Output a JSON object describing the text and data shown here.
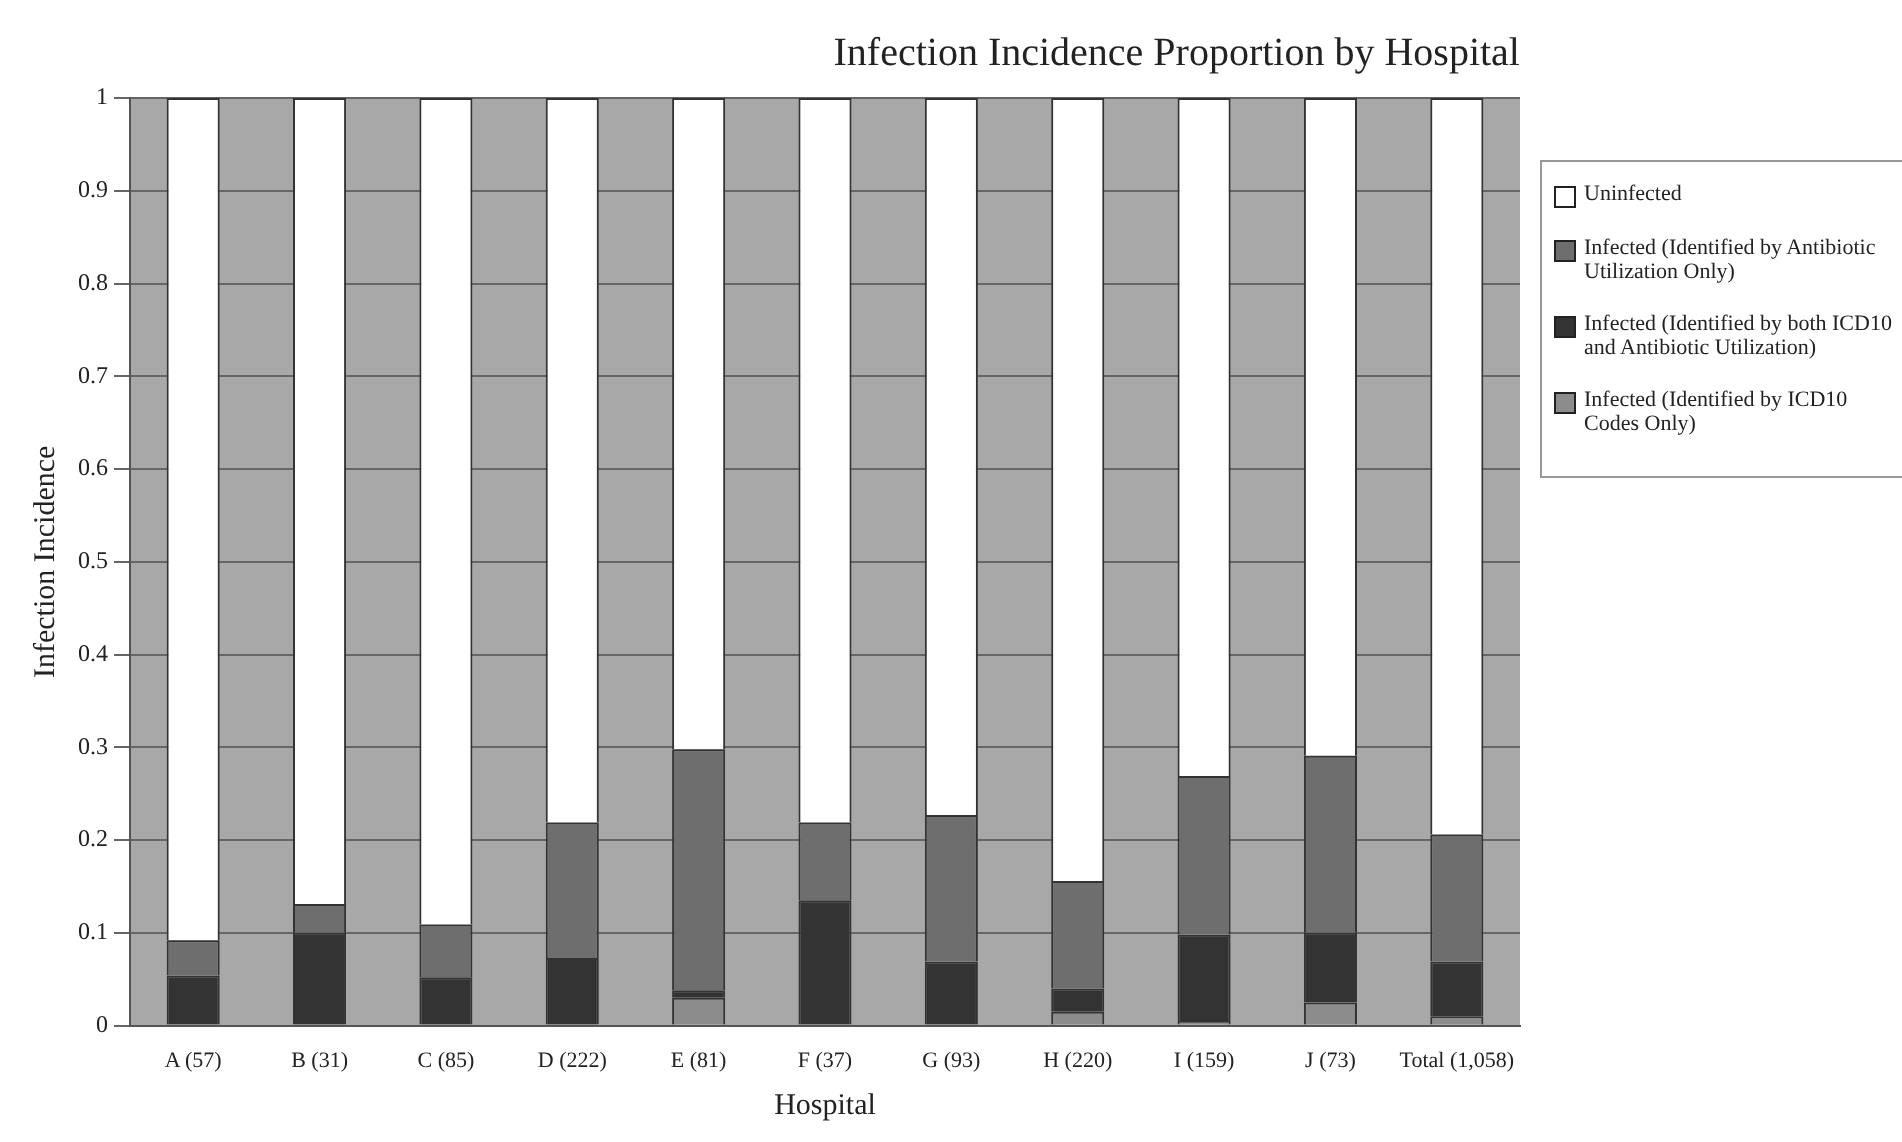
{
  "chart_data": {
    "type": "bar",
    "title": "Infection Incidence Proportion by Hospital",
    "xlabel": "Hospital",
    "ylabel": "Infection Incidence",
    "categories": [
      "A (57)",
      "B (31)",
      "C (85)",
      "D (222)",
      "E (81)",
      "F (37)",
      "G (93)",
      "H (220)",
      "I (159)",
      "J (73)",
      "Total (1,058)"
    ],
    "stacked": true,
    "legend": "right",
    "grid": "y",
    "ylim": [
      0,
      1
    ],
    "yticks": [
      0,
      0.1,
      0.2,
      0.3,
      0.4,
      0.5,
      0.6,
      0.7,
      0.8,
      0.9,
      1
    ],
    "series": [
      {
        "name": "Infected (Identified by ICD10 Codes Only)",
        "color": "#8c8c8c",
        "values": [
          0,
          0,
          0,
          0,
          0.03,
          0,
          0,
          0.015,
          0.005,
          0.025,
          0.01
        ]
      },
      {
        "name": "Infected (Identified by both ICD10 and Antibiotic Utilization)",
        "color": "#333333",
        "values": [
          0.054,
          0.1,
          0.052,
          0.073,
          0.008,
          0.135,
          0.069,
          0.025,
          0.093,
          0.075,
          0.059
        ]
      },
      {
        "name": "Infected (Identified by Antibiotic Utilization Only)",
        "color": "#6e6e6e",
        "values": [
          0.038,
          0.031,
          0.057,
          0.146,
          0.26,
          0.084,
          0.158,
          0.116,
          0.171,
          0.191,
          0.137
        ]
      },
      {
        "name": "Uninfected",
        "color": "#ffffff",
        "values": [
          0.908,
          0.869,
          0.891,
          0.781,
          0.702,
          0.781,
          0.773,
          0.844,
          0.731,
          0.709,
          0.794
        ]
      }
    ]
  }
}
